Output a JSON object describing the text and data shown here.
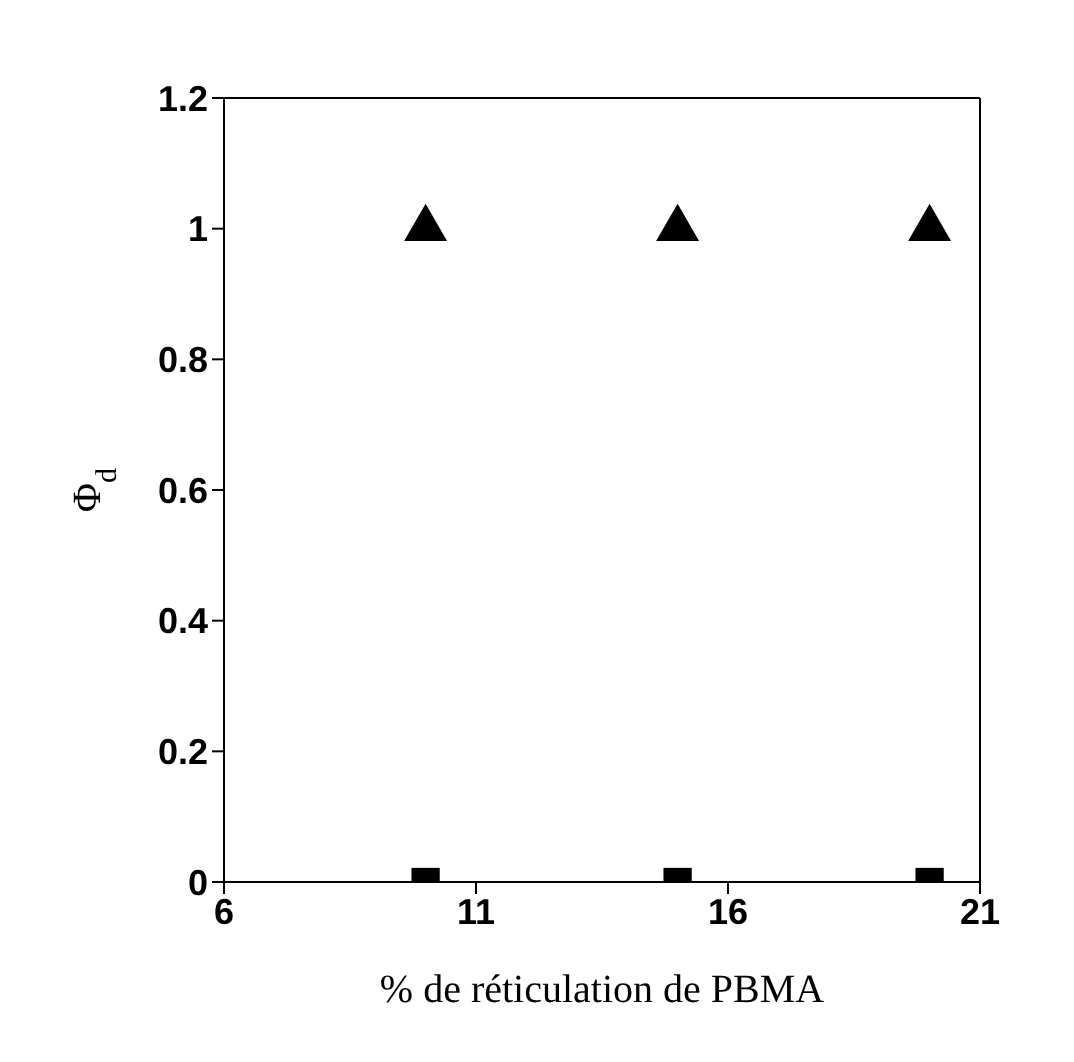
{
  "chart_data": {
    "type": "scatter",
    "xlabel": "% de réticulation de PBMA",
    "ylabel": "Φ$_{d}$",
    "xlim": [
      6,
      21
    ],
    "xticks": [
      6,
      11,
      16,
      21
    ],
    "ylim": [
      0,
      1.2
    ],
    "yticks": [
      0,
      0.2,
      0.4,
      0.6,
      0.8,
      1,
      1.2
    ],
    "grid": false,
    "legend": false,
    "series": [
      {
        "color": "#000000",
        "marker": "triangle",
        "x": [
          10,
          15,
          20
        ],
        "values": [
          1,
          1,
          1
        ]
      },
      {
        "color": "#000000",
        "marker": "square",
        "x": [
          10,
          15,
          20
        ],
        "values": [
          0,
          0,
          0
        ]
      }
    ]
  }
}
